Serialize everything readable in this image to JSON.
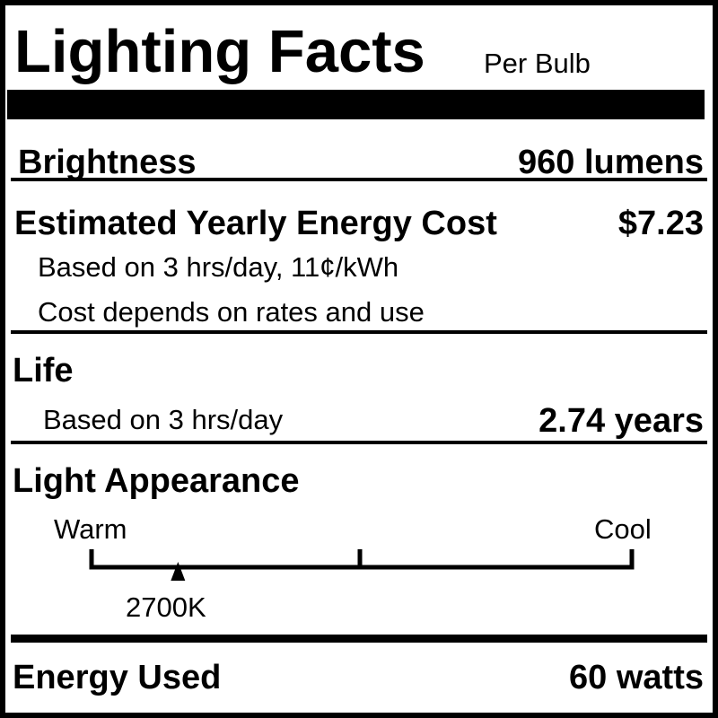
{
  "header": {
    "title": "Lighting Facts",
    "subtitle": "Per Bulb"
  },
  "brightness": {
    "label": "Brightness",
    "value": "960 lumens"
  },
  "energy_cost": {
    "label": "Estimated Yearly Energy Cost",
    "value": "$7.23",
    "note1": "Based on 3 hrs/day, 11¢/kWh",
    "note2": "Cost depends on rates and use"
  },
  "life": {
    "label": "Life",
    "note": "Based on 3 hrs/day",
    "value": "2.74 years"
  },
  "light_appearance": {
    "label": "Light Appearance",
    "warm_label": "Warm",
    "cool_label": "Cool",
    "marker_label": "2700K",
    "marker_position_fraction": 0.16
  },
  "energy_used": {
    "label": "Energy Used",
    "value": "60 watts"
  }
}
